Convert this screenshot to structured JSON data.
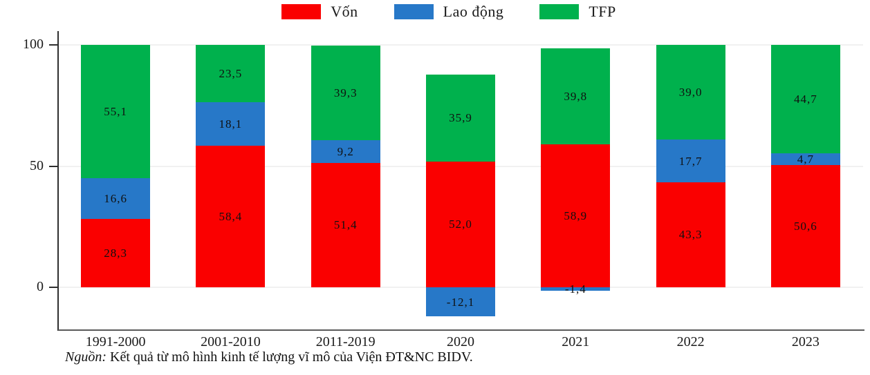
{
  "chart_data": {
    "type": "bar",
    "stacked": true,
    "categories": [
      "1991-2000",
      "2001-2010",
      "2011-2019",
      "2020",
      "2021",
      "2022",
      "2023"
    ],
    "series": [
      {
        "name": "Vốn",
        "color": "#fa0000",
        "values": [
          28.3,
          58.4,
          51.4,
          52.0,
          58.9,
          43.3,
          50.6
        ],
        "labels": [
          "28,3",
          "58,4",
          "51,4",
          "52,0",
          "58,9",
          "43,3",
          "50,6"
        ]
      },
      {
        "name": "Lao động",
        "color": "#2778c8",
        "values": [
          16.6,
          18.1,
          9.2,
          -12.1,
          -1.4,
          17.7,
          4.7
        ],
        "labels": [
          "16,6",
          "18,1",
          "9,2",
          "-12,1",
          "-1,4",
          "17,7",
          "4,7"
        ]
      },
      {
        "name": "TFP",
        "color": "#00b14d",
        "values": [
          55.1,
          23.5,
          39.3,
          35.9,
          39.8,
          39.0,
          44.7
        ],
        "labels": [
          "55,1",
          "23,5",
          "39,3",
          "35,9",
          "39,8",
          "39,0",
          "44,7"
        ]
      }
    ],
    "yticks": [
      0,
      50,
      100
    ],
    "ylim": [
      -18,
      105.8
    ],
    "grid": "horizontal-light",
    "legend_position": "top-center",
    "decimal_separator": ","
  },
  "note": {
    "prefix": "Nguồn:",
    "text": " Kết quả từ mô hình kinh tế lượng vĩ mô của Viện ĐT&NC BIDV."
  }
}
